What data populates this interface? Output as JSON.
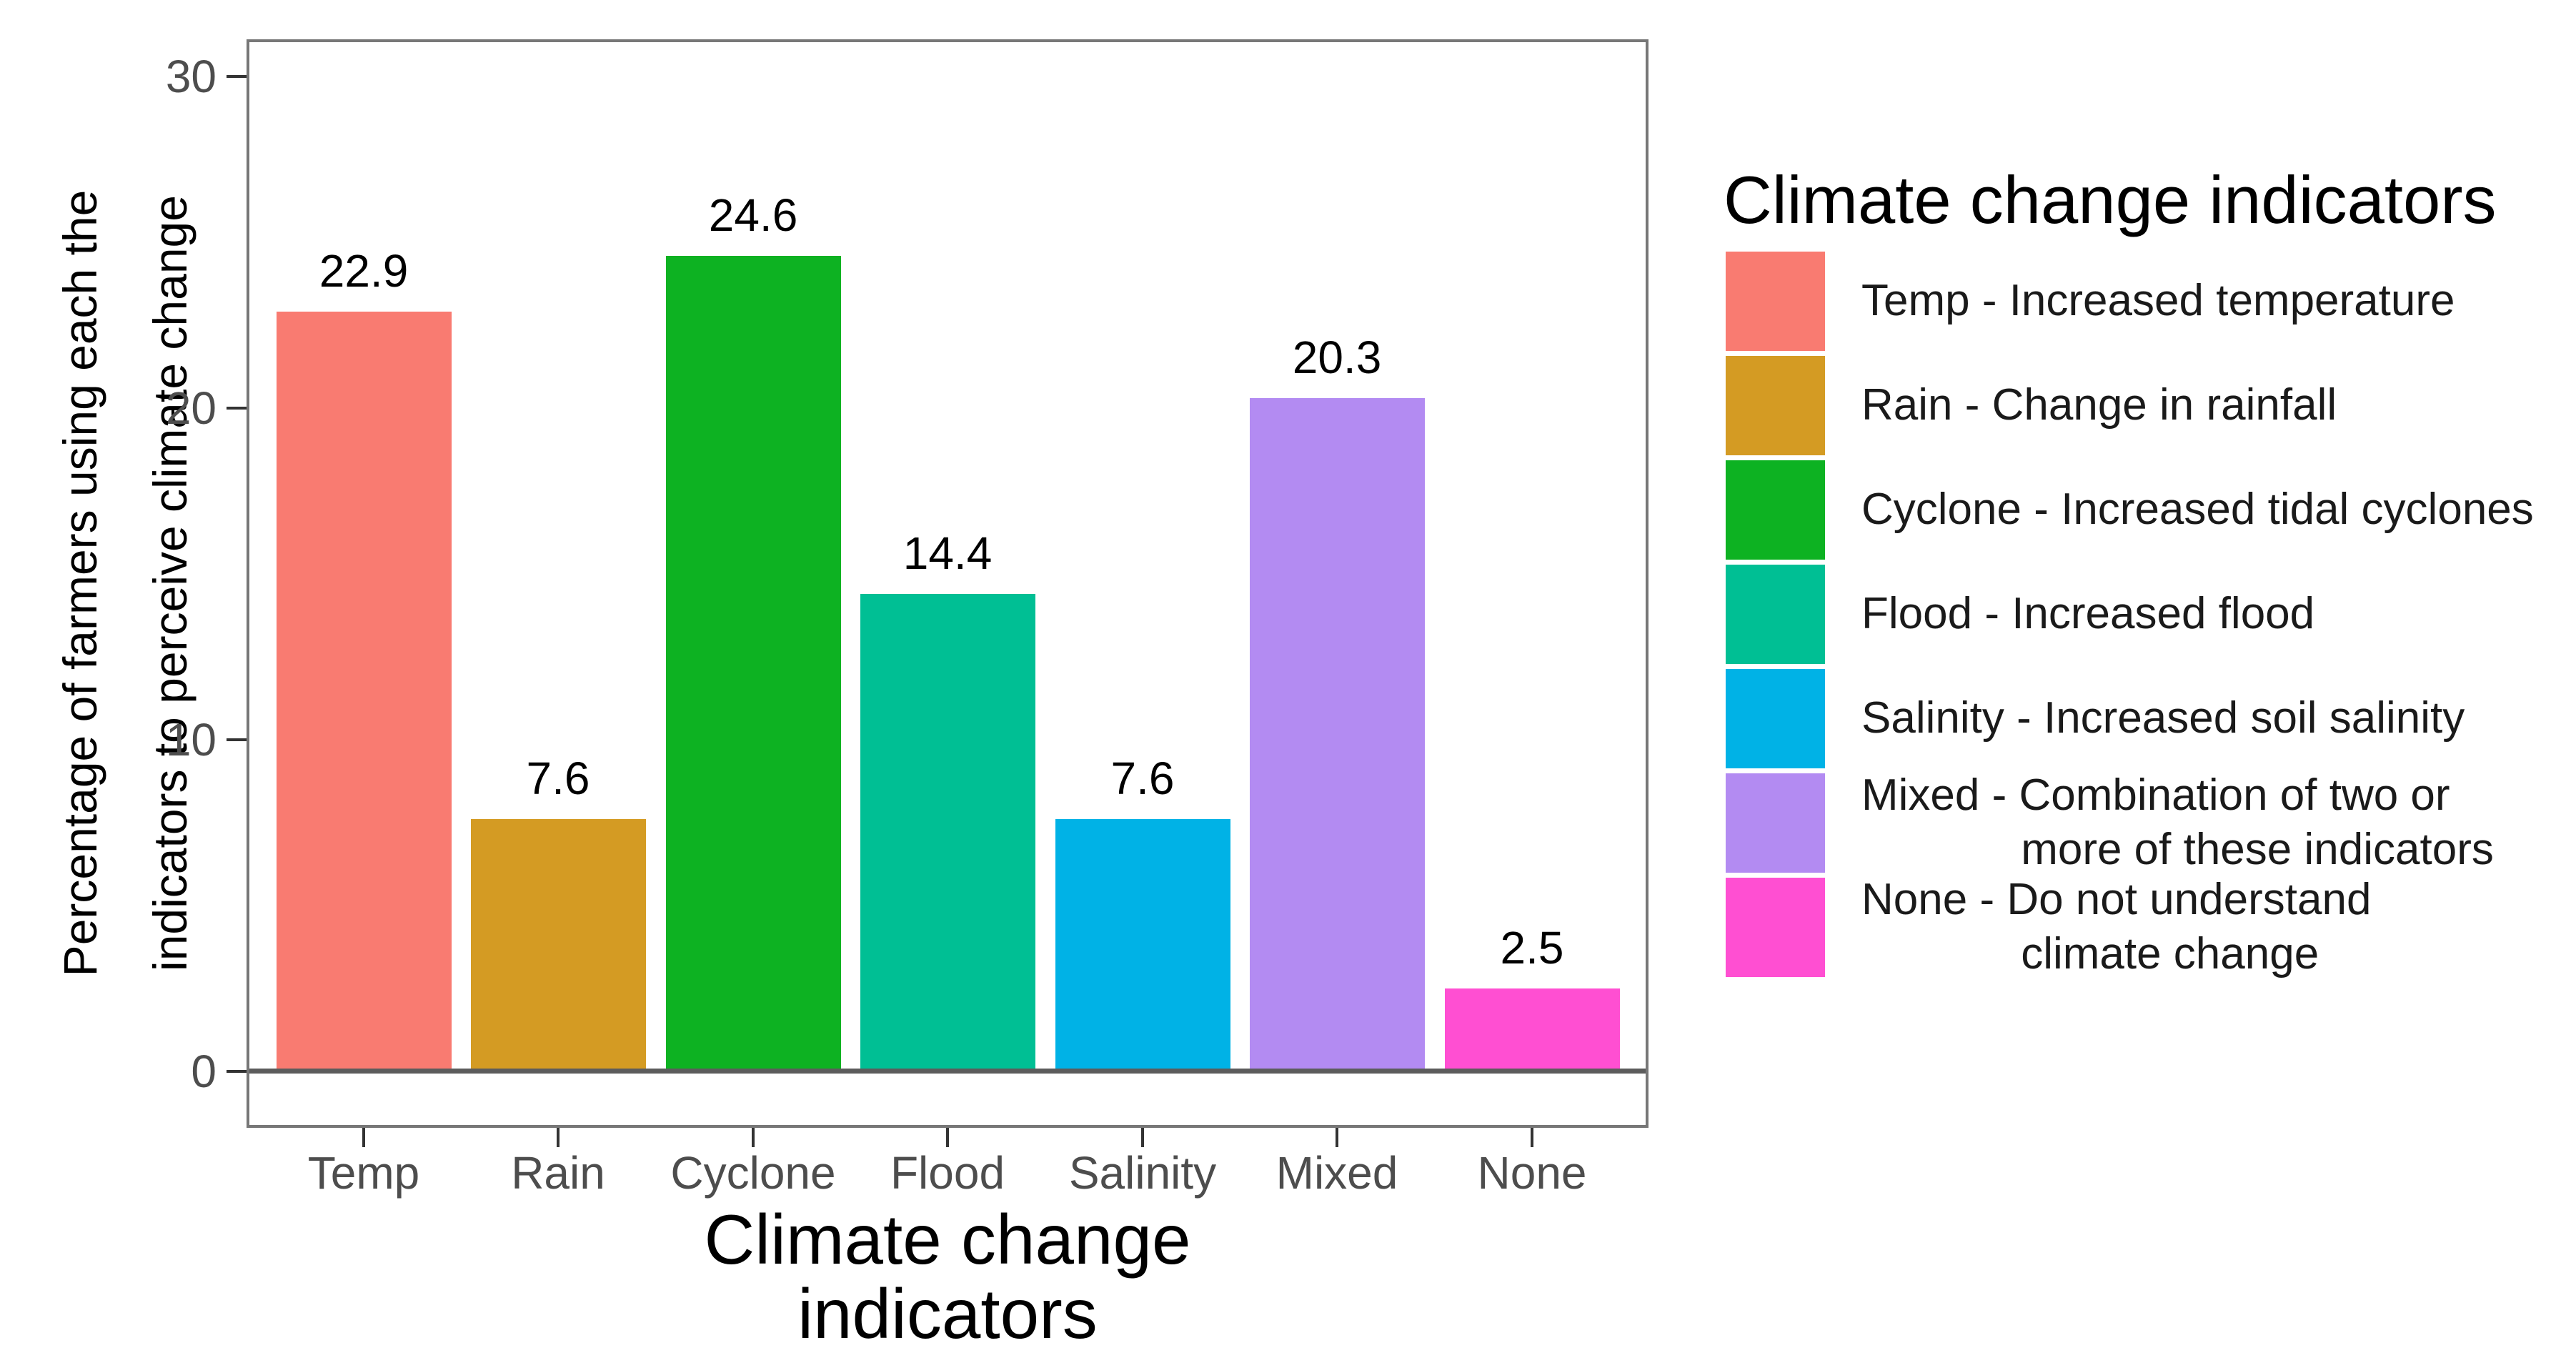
{
  "chart_data": {
    "type": "bar",
    "title": "",
    "categories": [
      "Temp",
      "Rain",
      "Cyclone",
      "Flood",
      "Salinity",
      "Mixed",
      "None"
    ],
    "values": [
      22.9,
      7.6,
      24.6,
      14.4,
      7.6,
      20.3,
      2.5
    ],
    "value_labels": [
      "22.9",
      "7.6",
      "24.6",
      "14.4",
      "7.6",
      "20.3",
      "2.5"
    ],
    "bar_colors": [
      "#F97B71",
      "#D49B23",
      "#0DB222",
      "#00BF94",
      "#00B2E6",
      "#B38BF2",
      "#FF4FD2"
    ],
    "xlabel": "Climate change indicators",
    "ylabel_lines": [
      "Percentage of farmers using each the",
      "indicators to perceive climate change"
    ],
    "y_ticks": [
      0,
      10,
      20,
      30
    ],
    "ylim": [
      -1.7,
      31.5
    ],
    "grid": false,
    "axis_colors": {
      "tick_text": "#4d4d4d",
      "baseline": "#5c5c5c",
      "panel_border": "#777777",
      "tick_mark": "#333333"
    },
    "legend": {
      "title": "Climate change indicators",
      "position": "right",
      "entries": [
        {
          "key": "Temp",
          "color": "#F97B71",
          "label_lines": [
            "Temp - Increased temperature"
          ]
        },
        {
          "key": "Rain",
          "color": "#D49B23",
          "label_lines": [
            "Rain - Change in rainfall"
          ]
        },
        {
          "key": "Cyclone",
          "color": "#0DB222",
          "label_lines": [
            "Cyclone - Increased tidal cyclones"
          ]
        },
        {
          "key": "Flood",
          "color": "#00BF94",
          "label_lines": [
            "Flood - Increased flood"
          ]
        },
        {
          "key": "Salinity",
          "color": "#00B2E6",
          "label_lines": [
            "Salinity - Increased soil salinity"
          ]
        },
        {
          "key": "Mixed",
          "color": "#B38BF2",
          "label_lines": [
            "Mixed - Combination of two or",
            "more of these indicators"
          ]
        },
        {
          "key": "None",
          "color": "#FF4FD2",
          "label_lines": [
            "None - Do not understand",
            "climate change"
          ]
        }
      ]
    }
  }
}
